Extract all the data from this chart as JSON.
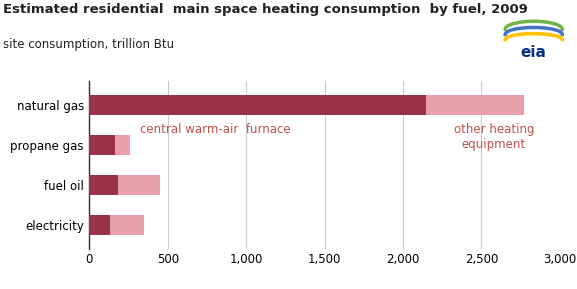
{
  "title": "Estimated residential  main space heating consumption  by fuel, 2009",
  "subtitle": "site consumption, trillion Btu",
  "categories": [
    "natural gas",
    "propane gas",
    "fuel oil",
    "electricity"
  ],
  "furnace_values": [
    2150,
    165,
    185,
    130
  ],
  "other_values": [
    620,
    95,
    265,
    215
  ],
  "color_furnace": "#993344",
  "color_other": "#e8a0a8",
  "label_furnace": "central warm-air  furnace",
  "label_other": "other heating\nequipment",
  "label_color": "#c0504d",
  "xlim": [
    0,
    3000
  ],
  "xticks": [
    0,
    500,
    1000,
    1500,
    2000,
    2500,
    3000
  ],
  "xtick_labels": [
    "0",
    "500",
    "1,000",
    "1,500",
    "2,000",
    "2,500",
    "3,000"
  ],
  "bar_height": 0.5,
  "background_color": "#ffffff",
  "grid_color": "#cccccc",
  "title_fontsize": 9.5,
  "subtitle_fontsize": 8.5,
  "axis_fontsize": 8.5,
  "label_fontsize": 8.5
}
